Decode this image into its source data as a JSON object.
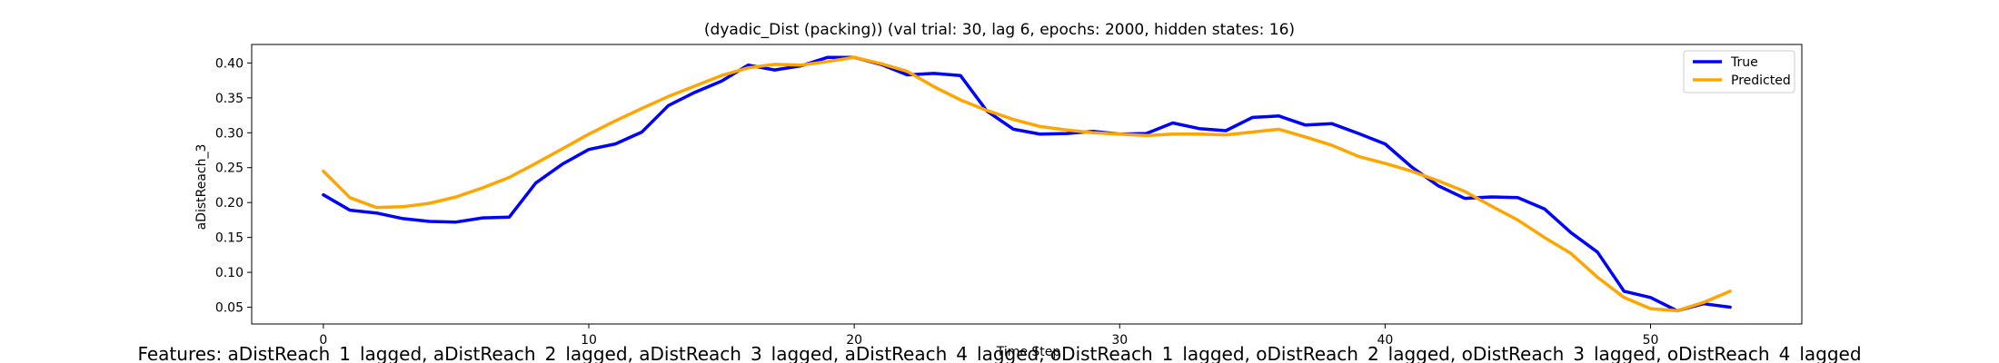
{
  "chart_data": {
    "type": "line",
    "title": "(dyadic_Dist (packing)) (val trial: 30, lag 6, epochs: 2000, hidden states: 16)",
    "xlabel": "Time Step",
    "ylabel": "aDistReach_3",
    "xlim": [
      -2.7,
      55.7
    ],
    "ylim": [
      0.026,
      0.4265
    ],
    "xticks": [
      0,
      10,
      20,
      30,
      40,
      50
    ],
    "yticks": [
      0.05,
      0.1,
      0.15,
      0.2,
      0.25,
      0.3,
      0.35,
      0.4
    ],
    "grid": false,
    "legend_position": "top-right",
    "series": [
      {
        "name": "True",
        "color": "#0000ff",
        "values": [
          0.211,
          0.189,
          0.185,
          0.177,
          0.173,
          0.172,
          0.178,
          0.179,
          0.228,
          0.255,
          0.276,
          0.284,
          0.301,
          0.339,
          0.358,
          0.374,
          0.397,
          0.39,
          0.396,
          0.408,
          0.408,
          0.398,
          0.383,
          0.385,
          0.382,
          0.331,
          0.305,
          0.298,
          0.299,
          0.302,
          0.298,
          0.299,
          0.314,
          0.306,
          0.303,
          0.322,
          0.324,
          0.311,
          0.313,
          0.299,
          0.284,
          0.251,
          0.224,
          0.206,
          0.208,
          0.207,
          0.191,
          0.157,
          0.129,
          0.073,
          0.064,
          0.045,
          0.055,
          0.05
        ]
      },
      {
        "name": "Predicted",
        "color": "#ffa500",
        "values": [
          0.245,
          0.207,
          0.193,
          0.194,
          0.199,
          0.208,
          0.221,
          0.236,
          0.256,
          0.277,
          0.298,
          0.317,
          0.335,
          0.352,
          0.367,
          0.382,
          0.393,
          0.398,
          0.397,
          0.402,
          0.408,
          0.399,
          0.388,
          0.366,
          0.347,
          0.332,
          0.319,
          0.309,
          0.304,
          0.3,
          0.298,
          0.296,
          0.298,
          0.298,
          0.297,
          0.301,
          0.305,
          0.294,
          0.282,
          0.266,
          0.256,
          0.245,
          0.231,
          0.216,
          0.195,
          0.175,
          0.15,
          0.127,
          0.093,
          0.064,
          0.048,
          0.045,
          0.057,
          0.073
        ]
      }
    ]
  },
  "footer": {
    "features": "Features: aDistReach_1_lagged, aDistReach_2_lagged, aDistReach_3_lagged, aDistReach_4_lagged, oDistReach_1_lagged, oDistReach_2_lagged, oDistReach_3_lagged, oDistReach_4_lagged"
  }
}
